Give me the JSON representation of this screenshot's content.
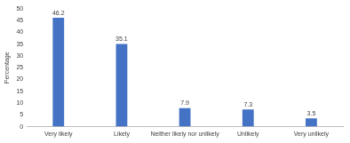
{
  "chart_data": {
    "type": "bar",
    "y_label": "Percentage",
    "categories": [
      "Very likely",
      "Likely",
      "Neither likely nor unlikely",
      "Unlikely",
      "Very unlikely"
    ],
    "values": [
      46.2,
      35.1,
      7.9,
      7.3,
      3.5
    ],
    "color": "#4472c4",
    "ylim": [
      0,
      50
    ],
    "yticks": [
      0,
      5,
      10,
      15,
      20,
      25,
      30,
      35,
      40,
      45,
      50
    ],
    "grid": false,
    "data_labels": true
  }
}
